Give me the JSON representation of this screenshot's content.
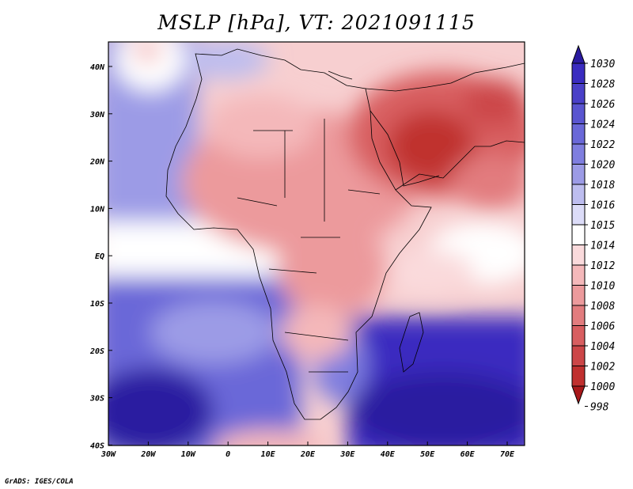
{
  "title": "MSLP [hPa], VT: 2021091115",
  "credit": "GrADS: IGES/COLA",
  "lon_labels": [
    "30W",
    "20W",
    "10W",
    "0",
    "10E",
    "20E",
    "30E",
    "40E",
    "50E",
    "60E",
    "70E"
  ],
  "lat_labels": [
    "40N",
    "30N",
    "20N",
    "10N",
    "EQ",
    "10S",
    "20S",
    "30S",
    "40S"
  ],
  "colorbar": {
    "levels": [
      "1030",
      "1028",
      "1026",
      "1024",
      "1022",
      "1020",
      "1018",
      "1016",
      "1015",
      "1014",
      "1012",
      "1010",
      "1008",
      "1006",
      "1004",
      "1002",
      "1000",
      "998"
    ],
    "colors": [
      "#2a1aa0",
      "#3a2cc0",
      "#4a40c8",
      "#5a55d0",
      "#6a68d8",
      "#7f7edf",
      "#9c9be6",
      "#bdbdef",
      "#dcdcf8",
      "#ffffff",
      "#fadadc",
      "#f4b8ba",
      "#ec9a9c",
      "#e27c7e",
      "#d85e60",
      "#cc4648",
      "#c0302f",
      "#a8181a"
    ]
  },
  "map_colors": {
    "high": "#2a1aa0",
    "mid_high": "#7f7edf",
    "neutral": "#ffffff",
    "low": "#ec9a9c",
    "deep_low": "#c0302f",
    "land_border": "#000000"
  }
}
